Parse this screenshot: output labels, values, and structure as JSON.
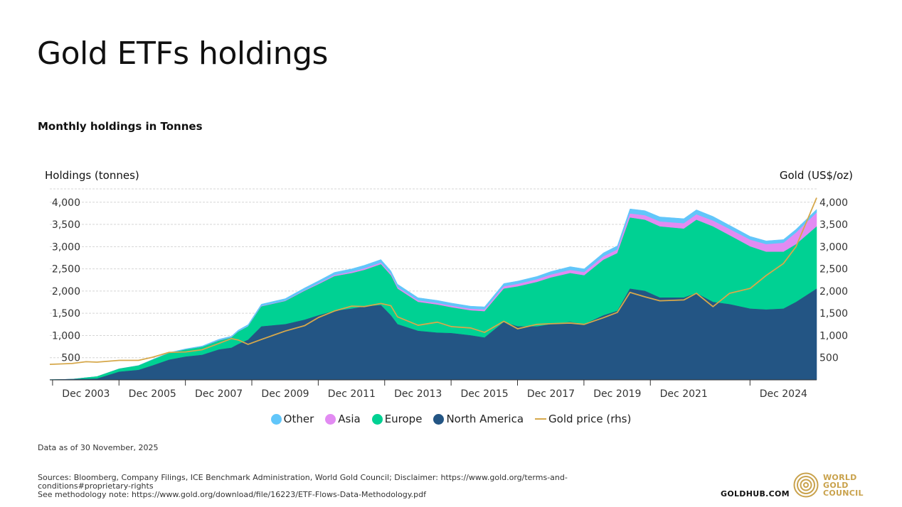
{
  "page": {
    "title": "Gold ETFs holdings",
    "subtitle": "Monthly holdings in Tonnes",
    "note": "Data as of 30 November, 2025",
    "sources": "Sources: Bloomberg, Company Filings, ICE Benchmark Administration, World Gold Council; Disclaimer: https://www.gold.org/terms-and-conditions#proprietary-rights",
    "methodology": "See methodology note: https://www.gold.org/download/file/16223/ETF-Flows-Data-Methodology.pdf",
    "goldhub": "GOLDHUB.COM",
    "logo_lines": [
      "WORLD",
      "GOLD",
      "COUNCIL"
    ]
  },
  "colors": {
    "north_america": "#235584",
    "europe": "#00d193",
    "asia": "#e28bf2",
    "other": "#61c6fa",
    "gold_price": "#d6a84b",
    "grid": "#d5d5d5",
    "logo": "#c9a24c"
  },
  "chart_data": {
    "type": "area",
    "stacked": true,
    "ylabel": "Holdings (tonnes)",
    "y2label": "Gold (US$/oz)",
    "ylim": [
      0,
      4300
    ],
    "y2lim": [
      0,
      4300
    ],
    "yticks": [
      500,
      1000,
      1500,
      2000,
      2500,
      3000,
      3500,
      4000
    ],
    "ytick_labels": [
      "500",
      "1,000",
      "1,500",
      "2,000",
      "2,500",
      "3,000",
      "3,500",
      "4,000"
    ],
    "y2ticks": [
      500,
      1000,
      1500,
      2000,
      2500,
      3000,
      3500,
      4000
    ],
    "y2tick_labels": [
      "500",
      "1,000",
      "1,500",
      "2,000",
      "2,500",
      "3,000",
      "3,500",
      "4,000"
    ],
    "x_range": [
      2002.83,
      2025.92
    ],
    "xticks": [
      2003.92,
      2005.92,
      2007.92,
      2009.92,
      2011.92,
      2013.92,
      2015.92,
      2017.92,
      2019.92,
      2021.92,
      2024.92
    ],
    "xtick_labels": [
      "Dec 2003",
      "Dec 2005",
      "Dec 2007",
      "Dec 2009",
      "Dec 2011",
      "Dec 2013",
      "Dec 2015",
      "Dec 2017",
      "Dec 2019",
      "Dec 2021",
      "Dec 2024"
    ],
    "grid": true,
    "legend_position": "bottom",
    "legend": [
      "Other",
      "Asia",
      "Europe",
      "North America",
      "Gold price (rhs)"
    ],
    "x": [
      2002.83,
      2003.5,
      2003.92,
      2004.25,
      2004.92,
      2005.5,
      2005.92,
      2006.42,
      2006.92,
      2007.42,
      2007.92,
      2008.3,
      2008.5,
      2008.8,
      2009.2,
      2009.92,
      2010.5,
      2010.92,
      2011.4,
      2011.92,
      2012.3,
      2012.8,
      2013.1,
      2013.3,
      2013.92,
      2014.5,
      2014.92,
      2015.5,
      2015.92,
      2016.5,
      2016.92,
      2017.5,
      2017.92,
      2018.5,
      2018.92,
      2019.5,
      2019.92,
      2020.3,
      2020.75,
      2021.2,
      2021.92,
      2022.3,
      2022.8,
      2023.3,
      2023.92,
      2024.4,
      2024.92,
      2025.3,
      2025.92
    ],
    "series": [
      {
        "name": "North America",
        "values": [
          5,
          15,
          20,
          25,
          180,
          220,
          320,
          450,
          520,
          560,
          680,
          720,
          800,
          900,
          1200,
          1250,
          1350,
          1450,
          1550,
          1600,
          1650,
          1680,
          1450,
          1250,
          1100,
          1060,
          1050,
          1000,
          950,
          1300,
          1200,
          1200,
          1250,
          1300,
          1250,
          1450,
          1550,
          2050,
          2000,
          1850,
          1850,
          1950,
          1750,
          1700,
          1600,
          1580,
          1600,
          1750,
          2050
        ]
      },
      {
        "name": "Europe",
        "values": [
          0,
          0,
          30,
          50,
          70,
          100,
          130,
          150,
          160,
          180,
          200,
          230,
          280,
          300,
          450,
          520,
          650,
          700,
          780,
          800,
          820,
          920,
          900,
          800,
          650,
          630,
          580,
          560,
          590,
          750,
          900,
          1000,
          1050,
          1100,
          1100,
          1250,
          1300,
          1600,
          1600,
          1600,
          1550,
          1650,
          1700,
          1550,
          1400,
          1300,
          1280,
          1300,
          1400
        ]
      },
      {
        "name": "Asia",
        "values": [
          0,
          0,
          0,
          0,
          0,
          0,
          0,
          0,
          0,
          0,
          5,
          5,
          5,
          5,
          10,
          10,
          15,
          20,
          25,
          30,
          35,
          35,
          35,
          35,
          35,
          35,
          35,
          35,
          40,
          50,
          55,
          60,
          65,
          70,
          70,
          75,
          80,
          90,
          100,
          110,
          120,
          120,
          130,
          140,
          150,
          170,
          200,
          260,
          310
        ]
      },
      {
        "name": "Other",
        "values": [
          0,
          0,
          0,
          0,
          0,
          5,
          10,
          15,
          20,
          25,
          30,
          30,
          35,
          40,
          45,
          50,
          55,
          60,
          65,
          70,
          75,
          75,
          70,
          70,
          65,
          65,
          65,
          65,
          65,
          70,
          70,
          70,
          75,
          80,
          80,
          85,
          90,
          110,
          110,
          110,
          110,
          110,
          100,
          90,
          80,
          80,
          80,
          80,
          80
        ]
      },
      {
        "name": "Gold price (rhs)",
        "values": [
          350,
          370,
          410,
          400,
          440,
          440,
          510,
          620,
          630,
          680,
          820,
          930,
          900,
          800,
          910,
          1100,
          1220,
          1405,
          1550,
          1660,
          1650,
          1720,
          1670,
          1420,
          1230,
          1300,
          1200,
          1170,
          1070,
          1320,
          1150,
          1250,
          1265,
          1280,
          1250,
          1400,
          1520,
          1970,
          1870,
          1780,
          1800,
          1950,
          1650,
          1950,
          2060,
          2350,
          2620,
          3000,
          4100
        ]
      }
    ]
  }
}
